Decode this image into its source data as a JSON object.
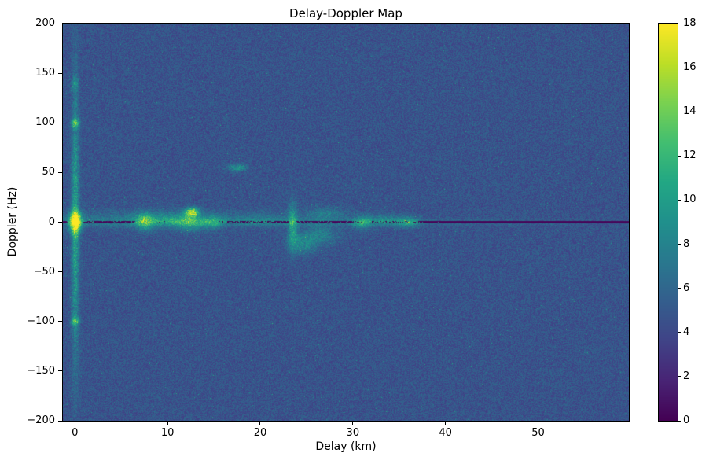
{
  "figure": {
    "background": "#ffffff",
    "axis_color": "#000000"
  },
  "chart_data": {
    "type": "heatmap",
    "title": "Delay-Doppler Map",
    "xlabel": "Delay (km)",
    "ylabel": "Doppler (Hz)",
    "xlim": [
      -1.3,
      59.8
    ],
    "ylim": [
      -200,
      200
    ],
    "grid": false,
    "legend": null,
    "xticks": [
      {
        "v": 0,
        "label": "0"
      },
      {
        "v": 10,
        "label": "10"
      },
      {
        "v": 20,
        "label": "20"
      },
      {
        "v": 30,
        "label": "30"
      },
      {
        "v": 40,
        "label": "40"
      },
      {
        "v": 50,
        "label": "50"
      }
    ],
    "yticks": [
      {
        "v": -200,
        "label": "−200"
      },
      {
        "v": -150,
        "label": "−150"
      },
      {
        "v": -100,
        "label": "−100"
      },
      {
        "v": -50,
        "label": "−50"
      },
      {
        "v": 0,
        "label": "0"
      },
      {
        "v": 50,
        "label": "50"
      },
      {
        "v": 100,
        "label": "100"
      },
      {
        "v": 150,
        "label": "150"
      },
      {
        "v": 200,
        "label": "200"
      }
    ],
    "colorbar": {
      "vmin": 0,
      "vmax": 18,
      "colormap": "viridis",
      "ticks": [
        {
          "v": 0,
          "label": "0"
        },
        {
          "v": 2,
          "label": "2"
        },
        {
          "v": 4,
          "label": "4"
        },
        {
          "v": 6,
          "label": "6"
        },
        {
          "v": 8,
          "label": "8"
        },
        {
          "v": 10,
          "label": "10"
        },
        {
          "v": 12,
          "label": "12"
        },
        {
          "v": 14,
          "label": "14"
        },
        {
          "v": 16,
          "label": "16"
        },
        {
          "v": 18,
          "label": "18"
        }
      ]
    },
    "colormap_stops": [
      [
        0.0,
        68,
        1,
        84
      ],
      [
        0.1,
        72,
        36,
        117
      ],
      [
        0.2,
        64,
        67,
        135
      ],
      [
        0.3,
        52,
        94,
        141
      ],
      [
        0.4,
        41,
        120,
        142
      ],
      [
        0.5,
        32,
        144,
        140
      ],
      [
        0.6,
        34,
        167,
        132
      ],
      [
        0.7,
        66,
        190,
        113
      ],
      [
        0.8,
        121,
        209,
        81
      ],
      [
        0.9,
        189,
        222,
        38
      ],
      [
        1.0,
        253,
        231,
        37
      ]
    ],
    "noise": {
      "seed": 1234,
      "base": 3.2,
      "spread": 3.0,
      "speckle_prob": 0.004,
      "speckle_amp": 3.5
    },
    "zero_doppler_line": {
      "y": 0,
      "value": 0.4,
      "half_width_hz": 0.8
    },
    "features": [
      {
        "x": 0,
        "y": 0,
        "sx": 0.28,
        "sy": 95,
        "amp": 5.5
      },
      {
        "x": 0,
        "y": 0,
        "sx": 0.45,
        "sy": 7,
        "amp": 13
      },
      {
        "x": 0,
        "y": 100,
        "sx": 0.3,
        "sy": 3,
        "amp": 7
      },
      {
        "x": 0,
        "y": -100,
        "sx": 0.3,
        "sy": 3,
        "amp": 6
      },
      {
        "x": 0,
        "y": 140,
        "sx": 0.25,
        "sy": 4,
        "amp": 3
      },
      {
        "x": 6,
        "y": 3,
        "sx": 7,
        "sy": 6,
        "amp": 2.2
      },
      {
        "x": 7.5,
        "y": 1,
        "sx": 0.7,
        "sy": 6,
        "amp": 6.5
      },
      {
        "x": 10,
        "y": 2,
        "sx": 1.2,
        "sy": 5,
        "amp": 3
      },
      {
        "x": 12.6,
        "y": 10,
        "sx": 0.5,
        "sy": 3,
        "amp": 11
      },
      {
        "x": 12.4,
        "y": 0,
        "sx": 1.0,
        "sy": 6,
        "amp": 5
      },
      {
        "x": 14.8,
        "y": 0,
        "sx": 0.8,
        "sy": 5,
        "amp": 4
      },
      {
        "x": 17.5,
        "y": 55,
        "sx": 0.7,
        "sy": 2.5,
        "amp": 4.5
      },
      {
        "x": 20,
        "y": 3,
        "sx": 3,
        "sy": 5,
        "amp": 2
      },
      {
        "x": 23.5,
        "y": -3,
        "sx": 0.35,
        "sy": 16,
        "amp": 5
      },
      {
        "x": 24.5,
        "y": -22,
        "sx": 1.0,
        "sy": 7,
        "amp": 3.5
      },
      {
        "x": 26.5,
        "y": -13,
        "sx": 1.3,
        "sy": 7,
        "amp": 3
      },
      {
        "x": 27,
        "y": 8,
        "sx": 1.5,
        "sy": 5,
        "amp": 2.8
      },
      {
        "x": 31,
        "y": 0,
        "sx": 0.8,
        "sy": 5,
        "amp": 4.5
      },
      {
        "x": 33.5,
        "y": 2,
        "sx": 1.2,
        "sy": 4,
        "amp": 3
      },
      {
        "x": 36,
        "y": 0,
        "sx": 0.9,
        "sy": 4,
        "amp": 4
      },
      {
        "x": 18,
        "y": 0,
        "sx": 18,
        "sy": 2.5,
        "amp": 2
      },
      {
        "x": 45,
        "y": 0,
        "sx": 10,
        "sy": 1.5,
        "amp": 1.2
      }
    ]
  }
}
